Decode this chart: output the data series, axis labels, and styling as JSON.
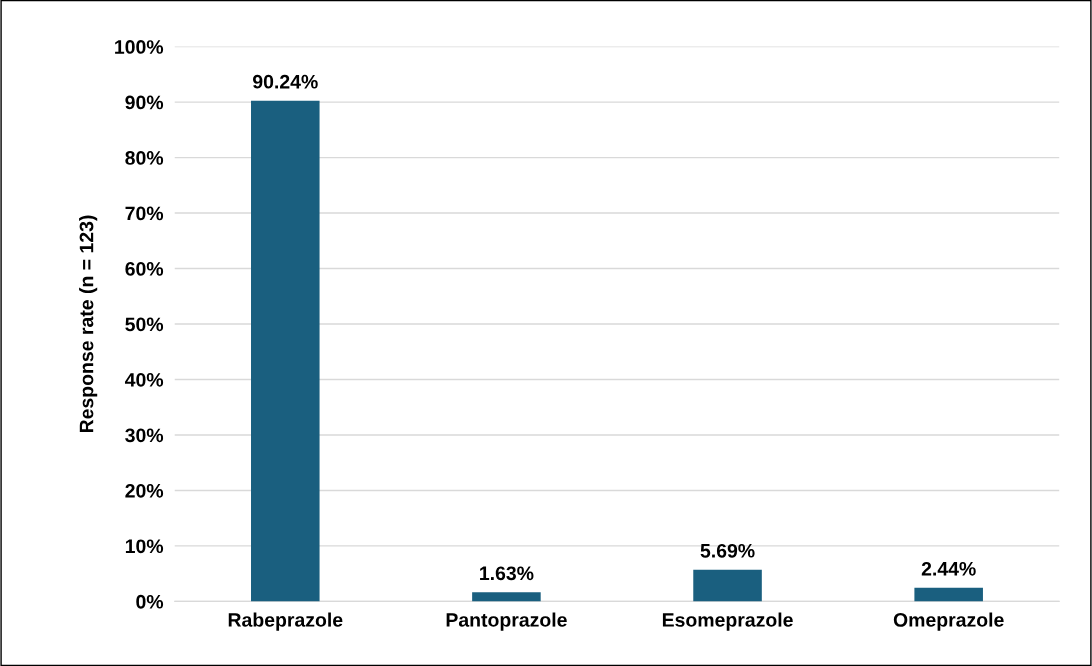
{
  "chart_data": {
    "type": "bar",
    "ylabel": "Response rate (n = 123)",
    "categories": [
      "Rabeprazole",
      "Pantoprazole",
      "Esomeprazole",
      "Omeprazole"
    ],
    "values": [
      90.24,
      1.63,
      5.69,
      2.44
    ],
    "value_labels": [
      "90.24%",
      "1.63%",
      "5.69%",
      "2.44%"
    ],
    "color": "#1a5f7f",
    "ylim": [
      0,
      100
    ],
    "yticks": [
      {
        "value": 0,
        "label": "0%"
      },
      {
        "value": 10,
        "label": "10%"
      },
      {
        "value": 20,
        "label": "20%"
      },
      {
        "value": 30,
        "label": "30%"
      },
      {
        "value": 40,
        "label": "40%"
      },
      {
        "value": 50,
        "label": "50%"
      },
      {
        "value": 60,
        "label": "60%"
      },
      {
        "value": 70,
        "label": "70%"
      },
      {
        "value": 80,
        "label": "80%"
      },
      {
        "value": 90,
        "label": "90%"
      },
      {
        "value": 100,
        "label": "100%"
      }
    ],
    "grid": "y"
  }
}
